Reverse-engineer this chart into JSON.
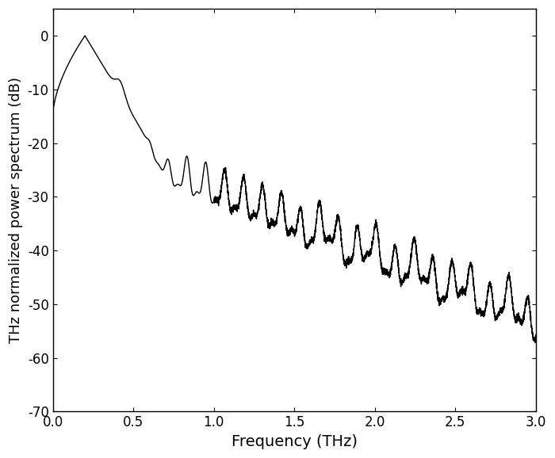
{
  "title": "",
  "xlabel": "Frequency (THz)",
  "ylabel": "THz normalized power spectrum (dB)",
  "xlim": [
    0.0,
    3.0
  ],
  "ylim": [
    -70,
    5
  ],
  "xticks": [
    0.0,
    0.5,
    1.0,
    1.5,
    2.0,
    2.5,
    3.0
  ],
  "yticks": [
    0,
    -10,
    -20,
    -30,
    -40,
    -50,
    -60,
    -70
  ],
  "line_color": "#000000",
  "line_width": 1.0,
  "bg_color": "#ffffff",
  "xlabel_fontsize": 14,
  "ylabel_fontsize": 13,
  "tick_fontsize": 12
}
